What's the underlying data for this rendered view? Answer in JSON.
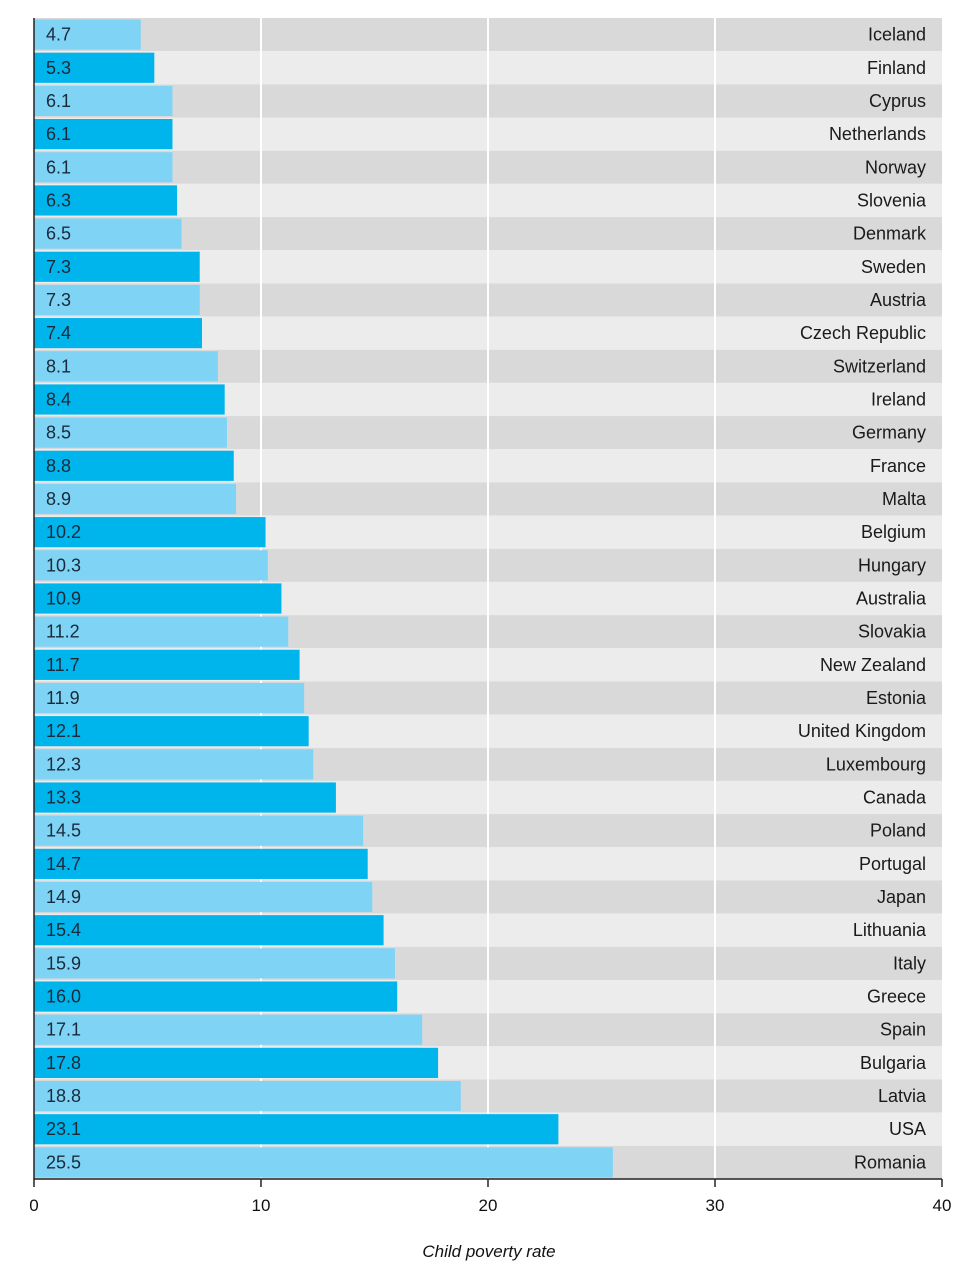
{
  "chart_data": {
    "type": "bar",
    "orientation": "horizontal",
    "title": "",
    "xlabel": "Child poverty rate",
    "ylabel": "",
    "xlim": [
      0,
      40
    ],
    "xticks": [
      0,
      10,
      20,
      30,
      40
    ],
    "grid": true,
    "categories": [
      "Iceland",
      "Finland",
      "Cyprus",
      "Netherlands",
      "Norway",
      "Slovenia",
      "Denmark",
      "Sweden",
      "Austria",
      "Czech Republic",
      "Switzerland",
      "Ireland",
      "Germany",
      "France",
      "Malta",
      "Belgium",
      "Hungary",
      "Australia",
      "Slovakia",
      "New Zealand",
      "Estonia",
      "United Kingdom",
      "Luxembourg",
      "Canada",
      "Poland",
      "Portugal",
      "Japan",
      "Lithuania",
      "Italy",
      "Greece",
      "Spain",
      "Bulgaria",
      "Latvia",
      "USA",
      "Romania"
    ],
    "values": [
      4.7,
      5.3,
      6.1,
      6.1,
      6.1,
      6.3,
      6.5,
      7.3,
      7.3,
      7.4,
      8.1,
      8.4,
      8.5,
      8.8,
      8.9,
      10.2,
      10.3,
      10.9,
      11.2,
      11.7,
      11.9,
      12.1,
      12.3,
      13.3,
      14.5,
      14.7,
      14.9,
      15.4,
      15.9,
      16.0,
      17.1,
      17.8,
      18.8,
      23.1,
      25.5
    ],
    "value_labels": [
      "4.7",
      "5.3",
      "6.1",
      "6.1",
      "6.1",
      "6.3",
      "6.5",
      "7.3",
      "7.3",
      "7.4",
      "8.1",
      "8.4",
      "8.5",
      "8.8",
      "8.9",
      "10.2",
      "10.3",
      "10.9",
      "11.2",
      "11.7",
      "11.9",
      "12.1",
      "12.3",
      "13.3",
      "14.5",
      "14.7",
      "14.9",
      "15.4",
      "15.9",
      "16.0",
      "17.1",
      "17.8",
      "18.8",
      "23.1",
      "25.5"
    ]
  },
  "colors": {
    "bar_light": "#7fd3f5",
    "bar_dark": "#00b4ec",
    "row_dark": "#d9d9d9",
    "row_light": "#ececec",
    "grid": "#ffffff",
    "axis": "#222222"
  }
}
